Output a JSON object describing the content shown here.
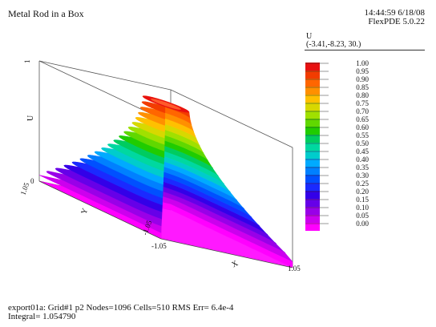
{
  "header": {
    "title": "Metal Rod in a Box",
    "time_date": "14:44:59 6/18/08",
    "version": "FlexPDE 5.0.22"
  },
  "legend": {
    "variable": "U",
    "viewpoint": "(-3.41,-8.23, 30.)",
    "levels": [
      "1.00",
      "0.95",
      "0.90",
      "0.85",
      "0.80",
      "0.75",
      "0.70",
      "0.65",
      "0.60",
      "0.55",
      "0.50",
      "0.45",
      "0.40",
      "0.35",
      "0.30",
      "0.25",
      "0.20",
      "0.15",
      "0.10",
      "0.05",
      "0.00"
    ],
    "colors": [
      "#e81010",
      "#f23c00",
      "#ff6600",
      "#ff9000",
      "#ffc000",
      "#d8d800",
      "#a0e000",
      "#60d800",
      "#20cc00",
      "#00cc60",
      "#00d8a0",
      "#00cccc",
      "#00aaff",
      "#0080ff",
      "#0050ff",
      "#1a2aff",
      "#3300e8",
      "#6600e8",
      "#9900e8",
      "#cc00ee",
      "#ff00ff"
    ]
  },
  "footer": {
    "line1": "export01a:  Grid#1  p2  Nodes=1096 Cells=510 RMS Err= 6.4e-4",
    "line2": "Integral=  1.054790"
  },
  "chart_data": {
    "type": "surface",
    "title": "Metal Rod in a Box",
    "zlabel": "U",
    "xlabel": "X",
    "ylabel": "Y",
    "x_ticks": [
      "-1.05",
      "1.05"
    ],
    "y_ticks": [
      "1.05",
      "-1.05"
    ],
    "z_ticks": [
      "0",
      "1"
    ],
    "xlim": [
      -1.05,
      1.05
    ],
    "ylim": [
      -1.05,
      1.05
    ],
    "zlim": [
      0,
      1
    ],
    "contour_levels": [
      0.0,
      0.05,
      0.1,
      0.15,
      0.2,
      0.25,
      0.3,
      0.35,
      0.4,
      0.45,
      0.5,
      0.55,
      0.6,
      0.65,
      0.7,
      0.75,
      0.8,
      0.85,
      0.9,
      0.95,
      1.0
    ],
    "description_values": {
      "plateau_value": 1.0,
      "corner_value": 0.0
    }
  }
}
